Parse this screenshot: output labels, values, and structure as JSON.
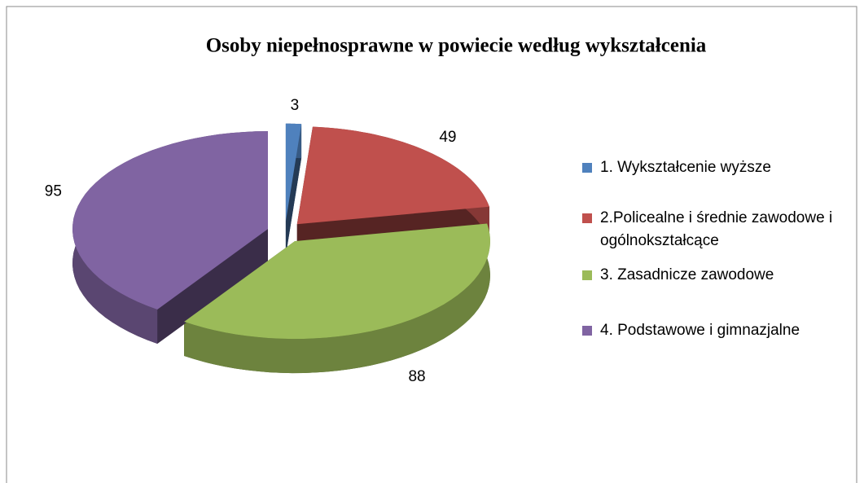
{
  "chart_data": {
    "type": "pie3d",
    "title": "Osoby niepełnosprawne w powiecie według wykształcenia",
    "categories": [
      "1. Wykształcenie wyższe",
      "2.Policealne i średnie zawodowe i ogólnokształcące",
      "3. Zasadnicze zawodowe",
      "4. Podstawowe i gimnazjalne"
    ],
    "values": [
      3,
      49,
      88,
      95
    ],
    "colors": [
      "#4f81bd",
      "#c0504d",
      "#9bbb59",
      "#8064a2"
    ],
    "legend": "right"
  }
}
